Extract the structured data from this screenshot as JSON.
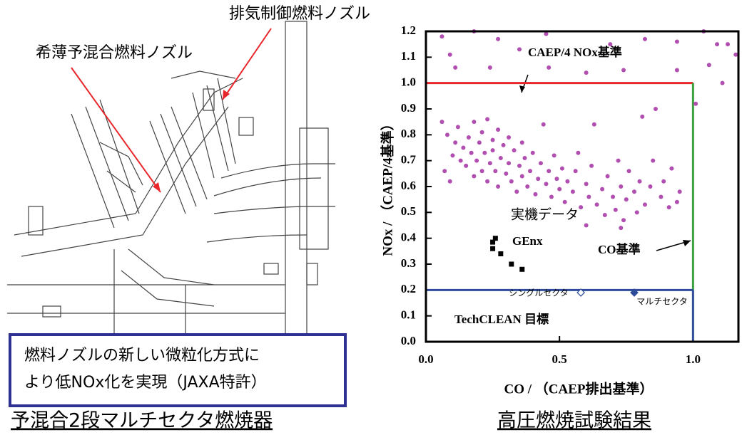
{
  "figure_left": {
    "labels": [
      "排気制御燃料ノズル",
      "希薄予混合燃料ノズル"
    ],
    "note_lines": [
      "燃料ノズルの新しい微粒化方式に",
      "より低NOx化を実現（JAXA特許）"
    ],
    "caption": "予混合2段マルチセクタ燃焼器"
  },
  "chart_data": {
    "type": "scatter",
    "caption": "高圧燃焼試験結果",
    "x_label": "CO / （CAEP排出基準）",
    "y_label": "NOx / （CAEP/4基準）",
    "xlim": [
      0,
      1.17
    ],
    "ylim": [
      0,
      1.2
    ],
    "xticks": [
      {
        "value": 0,
        "label": "0.0"
      },
      0.5,
      {
        "value": 1,
        "label": "1.0"
      }
    ],
    "yticks": [
      {
        "value": 0,
        "label": "0.0"
      },
      0.1,
      0.2,
      0.3,
      0.4,
      0.5,
      0.6,
      0.7,
      0.8,
      0.9,
      {
        "value": 1,
        "label": "1.0"
      },
      1.1,
      1.2
    ],
    "reference_lines": [
      {
        "x": [
          0,
          1
        ],
        "y": [
          1,
          1
        ],
        "color": "#e8262b"
      },
      {
        "x": [
          1,
          1
        ],
        "y": [
          0.2,
          1
        ],
        "color": "#3aa040"
      },
      {
        "x": [
          0,
          1
        ],
        "y": [
          0.2,
          0.2
        ],
        "color": "#2e4c9a"
      },
      {
        "x": [
          1,
          1
        ],
        "y": [
          0,
          0.2
        ],
        "color": "#2e4c9a"
      }
    ],
    "annotations": [
      "CAEP/4 NOx基準",
      "CO基準",
      "TechCLEAN 目標"
    ],
    "series": [
      {
        "name": "実機データ",
        "color": "#b04fb0",
        "marker": "circle",
        "x": [
          0.06,
          0.18,
          0.27,
          0.09,
          0.35,
          0.45,
          0.69,
          0.82,
          0.94,
          1.04,
          1.09,
          1.13,
          1.06,
          1.11,
          1.01,
          0.11,
          0.24,
          0.46,
          0.6,
          0.74,
          0.94,
          1.16,
          0.06,
          0.08,
          0.07,
          0.09,
          0.1,
          0.11,
          0.12,
          0.13,
          0.14,
          0.15,
          0.16,
          0.17,
          0.18,
          0.18,
          0.19,
          0.2,
          0.21,
          0.21,
          0.22,
          0.23,
          0.23,
          0.24,
          0.25,
          0.25,
          0.26,
          0.27,
          0.27,
          0.28,
          0.29,
          0.3,
          0.31,
          0.31,
          0.32,
          0.33,
          0.34,
          0.35,
          0.36,
          0.36,
          0.37,
          0.38,
          0.39,
          0.4,
          0.41,
          0.42,
          0.43,
          0.44,
          0.45,
          0.46,
          0.47,
          0.48,
          0.49,
          0.5,
          0.51,
          0.52,
          0.53,
          0.55,
          0.56,
          0.57,
          0.58,
          0.6,
          0.61,
          0.62,
          0.63,
          0.64,
          0.66,
          0.67,
          0.68,
          0.7,
          0.71,
          0.72,
          0.73,
          0.74,
          0.75,
          0.76,
          0.78,
          0.79,
          0.8,
          0.81,
          0.82,
          0.84,
          0.85,
          0.86,
          0.88,
          0.89,
          0.91,
          0.92,
          0.94,
          0.95,
          0.6,
          0.73
        ],
        "values": [
          1.18,
          1.2,
          1.17,
          1.11,
          1.13,
          1.19,
          1.15,
          1.17,
          1.16,
          1.2,
          1.15,
          1.15,
          1.07,
          1.0,
          0.92,
          1.06,
          1.06,
          1.06,
          1.04,
          1.05,
          1.05,
          1.11,
          0.85,
          0.8,
          0.66,
          0.62,
          0.72,
          0.77,
          0.83,
          0.7,
          0.75,
          0.68,
          0.79,
          0.73,
          0.85,
          0.64,
          0.7,
          0.77,
          0.81,
          0.66,
          0.73,
          0.86,
          0.62,
          0.69,
          0.78,
          0.74,
          0.66,
          0.82,
          0.6,
          0.71,
          0.76,
          0.65,
          0.79,
          0.69,
          0.62,
          0.74,
          0.58,
          0.68,
          0.77,
          0.64,
          0.71,
          0.6,
          0.66,
          0.73,
          0.57,
          0.63,
          0.69,
          0.84,
          0.61,
          0.66,
          0.56,
          0.72,
          0.63,
          0.59,
          0.67,
          0.54,
          0.62,
          0.58,
          0.66,
          0.73,
          0.52,
          0.61,
          0.56,
          0.68,
          0.84,
          0.53,
          0.59,
          0.49,
          0.64,
          0.56,
          0.51,
          0.7,
          0.6,
          0.47,
          0.55,
          0.66,
          0.58,
          0.5,
          0.62,
          0.87,
          0.53,
          0.6,
          0.7,
          0.9,
          0.56,
          0.62,
          0.52,
          0.67,
          0.54,
          0.58,
          0.45,
          0.44
        ]
      },
      {
        "name": "GEnx",
        "color": "#000000",
        "marker": "square",
        "x": [
          0.26,
          0.25,
          0.25,
          0.28,
          0.32,
          0.36
        ],
        "values": [
          0.4,
          0.385,
          0.36,
          0.34,
          0.3,
          0.28
        ]
      },
      {
        "name": "シングルセクタ",
        "color": "#2e4c9a",
        "marker": "open-diamond",
        "x": [
          0.58
        ],
        "values": [
          0.19
        ]
      },
      {
        "name": "マルチセクタ",
        "color": "#2e4c9a",
        "marker": "diamond",
        "x": [
          0.78
        ],
        "values": [
          0.19
        ]
      }
    ]
  }
}
